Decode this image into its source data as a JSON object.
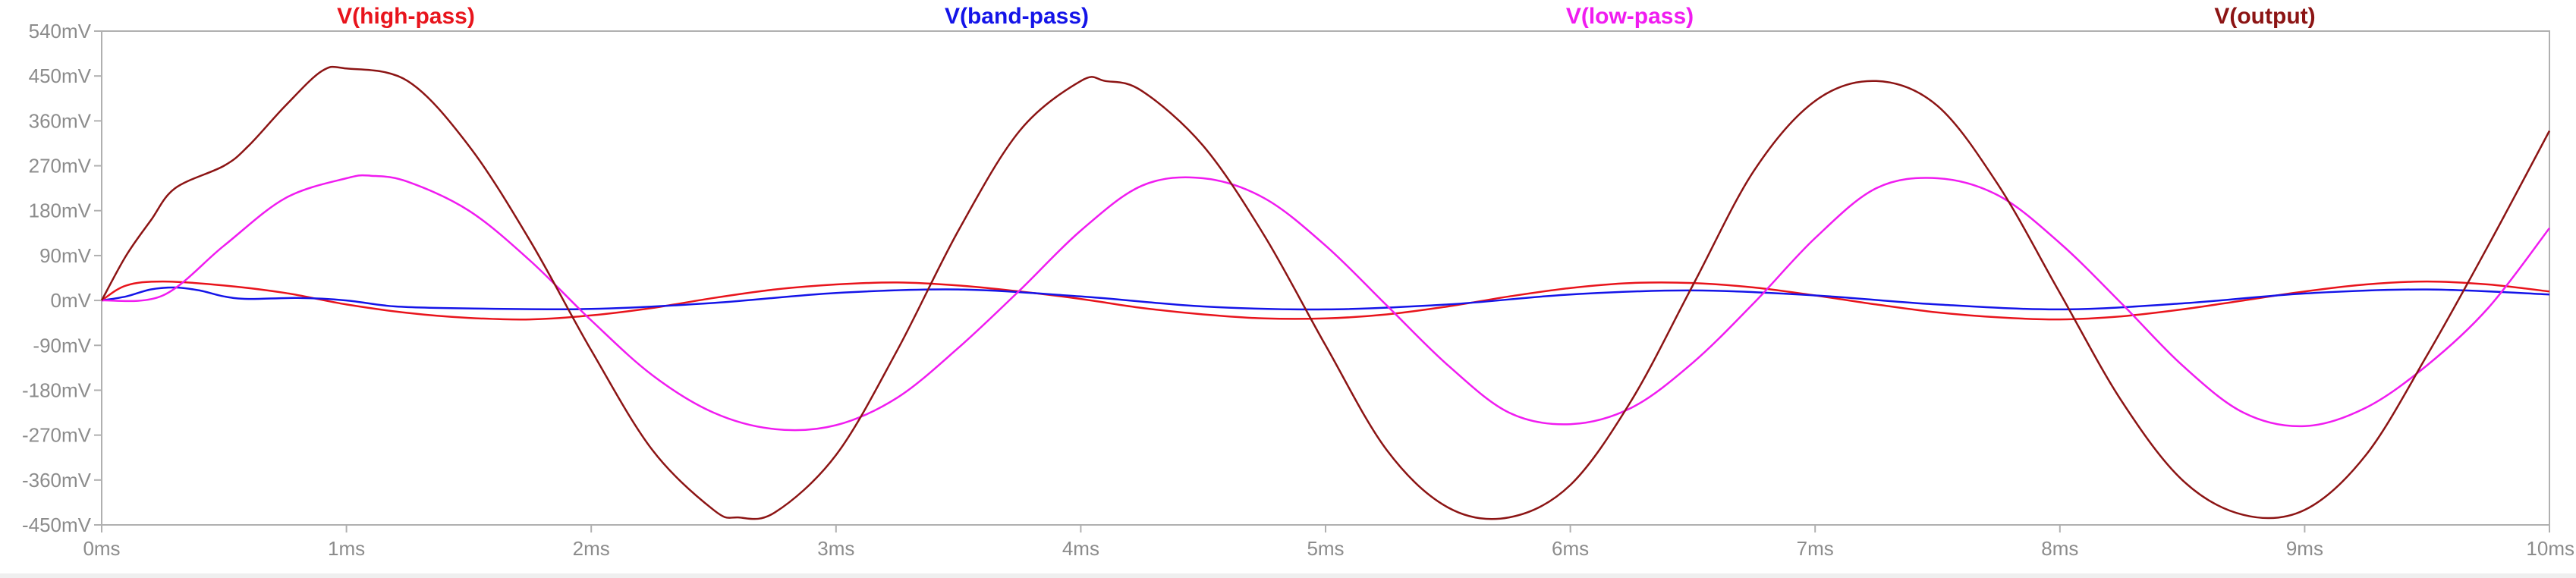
{
  "chart_data": {
    "type": "line",
    "title": "",
    "xlabel": "",
    "ylabel": "",
    "xlim": [
      0,
      10
    ],
    "ylim": [
      -450,
      540
    ],
    "x_ticks": [
      0,
      1,
      2,
      3,
      4,
      5,
      6,
      7,
      8,
      9,
      10
    ],
    "x_tick_labels": [
      "0ms",
      "1ms",
      "2ms",
      "3ms",
      "4ms",
      "5ms",
      "6ms",
      "7ms",
      "8ms",
      "9ms",
      "10ms"
    ],
    "y_ticks": [
      540,
      450,
      360,
      270,
      180,
      90,
      0,
      -90,
      -180,
      -270,
      -360,
      -450
    ],
    "y_tick_labels": [
      "540mV",
      "450mV",
      "360mV",
      "270mV",
      "180mV",
      "90mV",
      "0mV",
      "-90mV",
      "-180mV",
      "-270mV",
      "-360mV",
      "-450mV"
    ],
    "grid": false,
    "legend_position": "top",
    "series": [
      {
        "name": "V(high-pass)",
        "color": "#e8141c",
        "points": [
          [
            0,
            0
          ],
          [
            0.1,
            30
          ],
          [
            0.25,
            38
          ],
          [
            0.5,
            30
          ],
          [
            0.75,
            15
          ],
          [
            1.0,
            -8
          ],
          [
            1.25,
            -25
          ],
          [
            1.5,
            -35
          ],
          [
            1.75,
            -38
          ],
          [
            2.0,
            -30
          ],
          [
            2.25,
            -15
          ],
          [
            2.5,
            5
          ],
          [
            2.75,
            22
          ],
          [
            3.0,
            32
          ],
          [
            3.25,
            36
          ],
          [
            3.5,
            30
          ],
          [
            3.75,
            18
          ],
          [
            4.0,
            3
          ],
          [
            4.25,
            -15
          ],
          [
            4.5,
            -28
          ],
          [
            4.75,
            -36
          ],
          [
            5.0,
            -36
          ],
          [
            5.25,
            -28
          ],
          [
            5.5,
            -12
          ],
          [
            5.75,
            8
          ],
          [
            6.0,
            25
          ],
          [
            6.25,
            35
          ],
          [
            6.5,
            35
          ],
          [
            6.75,
            26
          ],
          [
            7.0,
            10
          ],
          [
            7.25,
            -8
          ],
          [
            7.5,
            -24
          ],
          [
            7.75,
            -34
          ],
          [
            8.0,
            -38
          ],
          [
            8.25,
            -32
          ],
          [
            8.5,
            -18
          ],
          [
            8.75,
            0
          ],
          [
            9.0,
            18
          ],
          [
            9.25,
            32
          ],
          [
            9.5,
            38
          ],
          [
            9.75,
            32
          ],
          [
            10.0,
            18
          ]
        ]
      },
      {
        "name": "V(band-pass)",
        "color": "#1414e8",
        "points": [
          [
            0,
            0
          ],
          [
            0.1,
            8
          ],
          [
            0.2,
            22
          ],
          [
            0.3,
            26
          ],
          [
            0.4,
            20
          ],
          [
            0.5,
            8
          ],
          [
            0.6,
            3
          ],
          [
            0.8,
            5
          ],
          [
            1.0,
            0
          ],
          [
            1.2,
            -12
          ],
          [
            1.5,
            -16
          ],
          [
            2.0,
            -17
          ],
          [
            2.5,
            -5
          ],
          [
            3.0,
            15
          ],
          [
            3.5,
            22
          ],
          [
            4.0,
            8
          ],
          [
            4.5,
            -12
          ],
          [
            5.0,
            -18
          ],
          [
            5.5,
            -8
          ],
          [
            6.0,
            12
          ],
          [
            6.5,
            20
          ],
          [
            7.0,
            10
          ],
          [
            7.5,
            -8
          ],
          [
            8.0,
            -18
          ],
          [
            8.5,
            -6
          ],
          [
            9.0,
            14
          ],
          [
            9.5,
            22
          ],
          [
            10.0,
            12
          ]
        ]
      },
      {
        "name": "V(low-pass)",
        "color": "#f01cf0",
        "points": [
          [
            0,
            0
          ],
          [
            0.25,
            10
          ],
          [
            0.5,
            110
          ],
          [
            0.75,
            205
          ],
          [
            1.0,
            245
          ],
          [
            1.1,
            250
          ],
          [
            1.25,
            238
          ],
          [
            1.5,
            180
          ],
          [
            1.75,
            80
          ],
          [
            2.0,
            -40
          ],
          [
            2.25,
            -150
          ],
          [
            2.5,
            -225
          ],
          [
            2.75,
            -258
          ],
          [
            3.0,
            -250
          ],
          [
            3.25,
            -195
          ],
          [
            3.5,
            -95
          ],
          [
            3.75,
            20
          ],
          [
            4.0,
            140
          ],
          [
            4.25,
            230
          ],
          [
            4.5,
            245
          ],
          [
            4.75,
            205
          ],
          [
            5.0,
            110
          ],
          [
            5.25,
            -10
          ],
          [
            5.5,
            -130
          ],
          [
            5.75,
            -225
          ],
          [
            6.0,
            -248
          ],
          [
            6.25,
            -215
          ],
          [
            6.5,
            -125
          ],
          [
            6.75,
            -5
          ],
          [
            7.0,
            125
          ],
          [
            7.25,
            225
          ],
          [
            7.5,
            245
          ],
          [
            7.75,
            210
          ],
          [
            8.0,
            115
          ],
          [
            8.25,
            -5
          ],
          [
            8.5,
            -130
          ],
          [
            8.75,
            -225
          ],
          [
            9.0,
            -252
          ],
          [
            9.25,
            -215
          ],
          [
            9.5,
            -130
          ],
          [
            9.75,
            -15
          ],
          [
            10.0,
            145
          ]
        ]
      },
      {
        "name": "V(output)",
        "color": "#8c1414",
        "points": [
          [
            0,
            0
          ],
          [
            0.1,
            90
          ],
          [
            0.2,
            160
          ],
          [
            0.3,
            225
          ],
          [
            0.5,
            270
          ],
          [
            0.6,
            310
          ],
          [
            0.75,
            390
          ],
          [
            0.9,
            460
          ],
          [
            1.0,
            465
          ],
          [
            1.25,
            440
          ],
          [
            1.5,
            310
          ],
          [
            1.75,
            120
          ],
          [
            2.0,
            -100
          ],
          [
            2.25,
            -300
          ],
          [
            2.5,
            -420
          ],
          [
            2.6,
            -435
          ],
          [
            2.75,
            -425
          ],
          [
            3.0,
            -310
          ],
          [
            3.25,
            -100
          ],
          [
            3.5,
            140
          ],
          [
            3.75,
            340
          ],
          [
            4.0,
            440
          ],
          [
            4.1,
            440
          ],
          [
            4.25,
            420
          ],
          [
            4.5,
            310
          ],
          [
            4.75,
            130
          ],
          [
            5.0,
            -90
          ],
          [
            5.25,
            -300
          ],
          [
            5.5,
            -415
          ],
          [
            5.75,
            -435
          ],
          [
            6.0,
            -370
          ],
          [
            6.25,
            -200
          ],
          [
            6.5,
            30
          ],
          [
            6.75,
            260
          ],
          [
            7.0,
            400
          ],
          [
            7.25,
            440
          ],
          [
            7.5,
            390
          ],
          [
            7.75,
            230
          ],
          [
            8.0,
            15
          ],
          [
            8.25,
            -200
          ],
          [
            8.5,
            -360
          ],
          [
            8.75,
            -430
          ],
          [
            9.0,
            -420
          ],
          [
            9.25,
            -310
          ],
          [
            9.5,
            -110
          ],
          [
            9.75,
            110
          ],
          [
            10.0,
            340
          ]
        ]
      }
    ]
  }
}
